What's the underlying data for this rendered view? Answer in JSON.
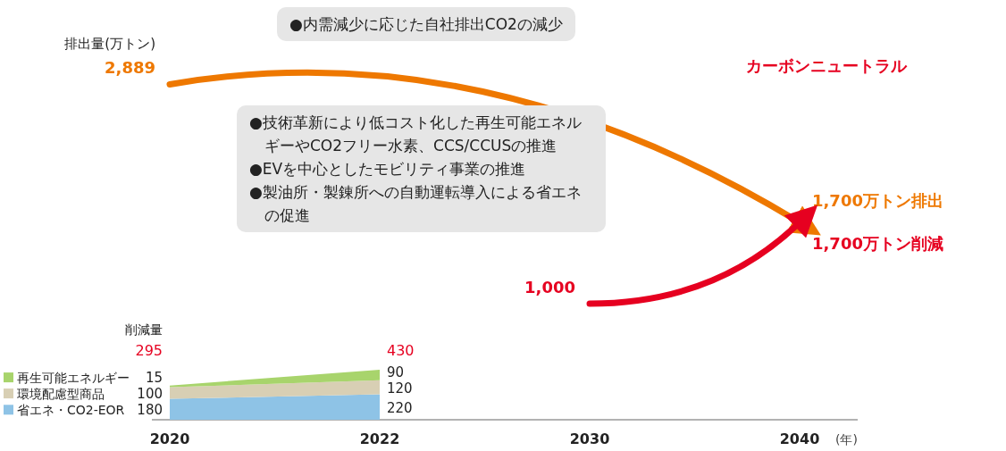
{
  "chart_data": {
    "type": "area",
    "stacked": true,
    "categories": [
      "2020",
      "2022",
      "2030",
      "2040"
    ],
    "xlabel": "(年)",
    "legend": "bottom left",
    "series": [
      {
        "name": "省エネ・CO2-EOR",
        "color": "#8ec3e6",
        "values": [
          180,
          220,
          null,
          null
        ],
        "value_labels": [
          "180",
          "220",
          null,
          null
        ]
      },
      {
        "name": "環境配慮型商品",
        "color": "#d8cfb4",
        "values": [
          100,
          120,
          null,
          null
        ],
        "value_labels": [
          "100",
          "120",
          null,
          null
        ]
      },
      {
        "name": "再生可能エネルギー",
        "color": "#a8d46c",
        "values": [
          15,
          90,
          null,
          null
        ],
        "value_labels": [
          "15",
          "90",
          null,
          null
        ]
      },
      {
        "name": "排出量(万トン)",
        "type": "line",
        "color": "#ee7800",
        "values": [
          2889,
          null,
          null,
          1700
        ],
        "value_labels": [
          "2,889",
          null,
          null,
          "1,700万トン排出"
        ]
      },
      {
        "type": "line",
        "color": "#e60020",
        "values": [
          null,
          null,
          1000,
          1700
        ],
        "value_labels": [
          null,
          null,
          "1,000",
          "1,700万トン削減"
        ]
      }
    ],
    "totals": [
      "295",
      "430",
      null,
      null
    ],
    "annotations": [
      "削減量",
      "●内需減少に応じた自社排出CO2の減少",
      "●技術革新により低コスト化した再生可能エネルギーやCO2フリー水素、CCS/CCUSの推進",
      "●EVを中心としたモビリティ事業の推進",
      "●製油所・製錬所への自動運転導入による省エネの促進",
      "カーボンニュートラル"
    ]
  }
}
